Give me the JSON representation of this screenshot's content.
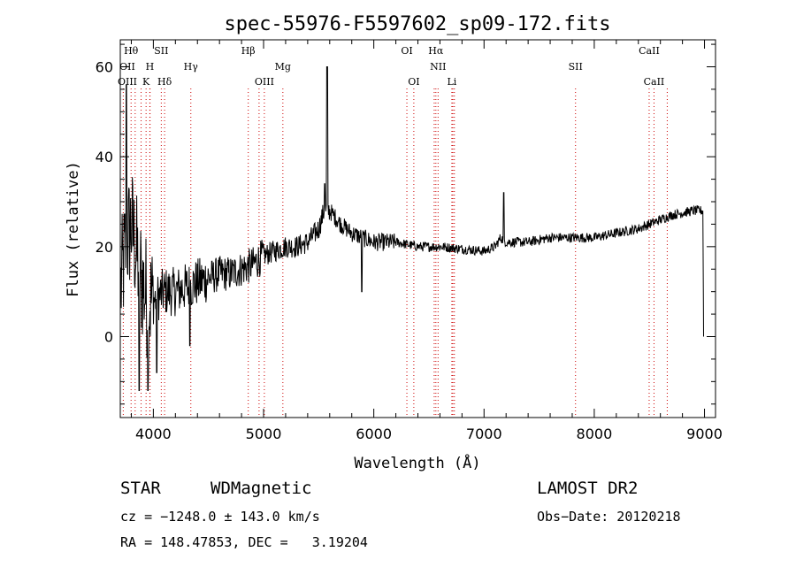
{
  "chart_data": {
    "type": "line",
    "title": "spec-55976-F5597602_sp09-172.fits",
    "xlabel": "Wavelength (Å)",
    "ylabel": "Flux (relative)",
    "xlim": [
      3700,
      9100
    ],
    "ylim": [
      -18,
      66
    ],
    "x_ticks": [
      4000,
      5000,
      6000,
      7000,
      8000,
      9000
    ],
    "y_ticks": [
      0,
      20,
      40,
      60
    ],
    "grid": false,
    "line_color": "#000000",
    "marker_color": "#cc0000",
    "spectral_lines": [
      {
        "name": "Hθ",
        "wavelength": 3798,
        "row": 0
      },
      {
        "name": "SII",
        "wavelength": 4072,
        "row": 0
      },
      {
        "name": "Hβ",
        "wavelength": 4861,
        "row": 0
      },
      {
        "name": "OI",
        "wavelength": 6300,
        "row": 0
      },
      {
        "name": "Hα",
        "wavelength": 6563,
        "row": 0
      },
      {
        "name": "CaII",
        "wavelength": 8498,
        "row": 0
      },
      {
        "name": "OII",
        "wavelength": 3727,
        "row": 1
      },
      {
        "name": "H",
        "wavelength": 3968,
        "row": 1
      },
      {
        "name": "Hγ",
        "wavelength": 4340,
        "row": 1
      },
      {
        "name": "Mg",
        "wavelength": 5175,
        "row": 1
      },
      {
        "name": "NII",
        "wavelength": 6583,
        "row": 1
      },
      {
        "name": "SII",
        "wavelength": 7830,
        "row": 1
      },
      {
        "name": "OIII",
        "wavelength": 3727,
        "row": 2
      },
      {
        "name": "K",
        "wavelength": 3934,
        "row": 2
      },
      {
        "name": "Hδ",
        "wavelength": 4102,
        "row": 2
      },
      {
        "name": "OIII",
        "wavelength": 5007,
        "row": 2
      },
      {
        "name": "OI",
        "wavelength": 6363,
        "row": 2
      },
      {
        "name": "Li",
        "wavelength": 6708,
        "row": 2
      },
      {
        "name": "CaII",
        "wavelength": 8542,
        "row": 2
      }
    ],
    "extra_marker_wavelengths": [
      3835,
      3889,
      3970,
      4959,
      6548,
      6717,
      6731,
      8662
    ],
    "spectrum_anchors": {
      "x": [
        3700,
        3750,
        3800,
        3850,
        3900,
        3950,
        4000,
        4100,
        4200,
        4300,
        4400,
        4500,
        4600,
        4700,
        4800,
        4900,
        5000,
        5100,
        5200,
        5300,
        5400,
        5500,
        5550,
        5600,
        5700,
        5800,
        5900,
        6000,
        6200,
        6400,
        6600,
        6800,
        7000,
        7100,
        7150,
        7200,
        7300,
        7400,
        7600,
        7800,
        8000,
        8200,
        8400,
        8500,
        8600,
        8700,
        8800,
        8900,
        8980
      ],
      "y": [
        10,
        20,
        25,
        18,
        12,
        8,
        8,
        10,
        10,
        11,
        12,
        13,
        14,
        14,
        15,
        16,
        18,
        19,
        20,
        20,
        21,
        24,
        28,
        28,
        25,
        23,
        22,
        21,
        21,
        20,
        20,
        19.5,
        19,
        20,
        22,
        21,
        21,
        21,
        22,
        22,
        22,
        23,
        24,
        25,
        26,
        27,
        27.5,
        28,
        28
      ]
    },
    "emission_peaks": [
      {
        "x": 5577,
        "y": 60
      },
      {
        "x": 5555,
        "y": 34
      },
      {
        "x": 7180,
        "y": 32
      },
      {
        "x": 3755,
        "y": 56
      }
    ],
    "absorption_dips": [
      {
        "x": 5890,
        "y": 10
      },
      {
        "x": 4330,
        "y": -2
      },
      {
        "x": 3870,
        "y": -12
      },
      {
        "x": 3950,
        "y": -12
      },
      {
        "x": 4030,
        "y": -8
      }
    ]
  },
  "info": {
    "object_class": "STAR",
    "subclass": "WDMagnetic",
    "survey": "LAMOST DR2",
    "cz": "cz = −1248.0 ± 143.0 km/s",
    "obs_date": "Obs−Date: 20120218",
    "coords": "RA = 148.47853, DEC =   3.19204"
  }
}
